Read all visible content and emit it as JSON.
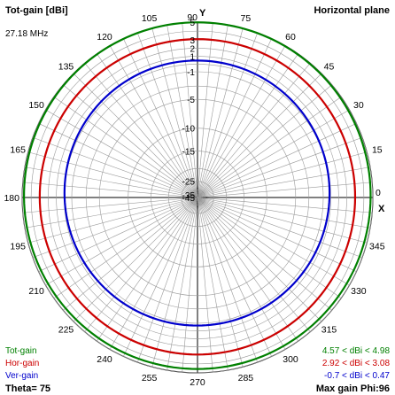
{
  "header": {
    "title": "Tot-gain [dBi]",
    "plane": "Horizontal plane",
    "frequency": "27.18 MHz"
  },
  "axes": {
    "x_label": "X",
    "y_label": "Y"
  },
  "footer": {
    "theta": "Theta= 75",
    "max_gain": "Max gain Phi:96"
  },
  "chart_data": {
    "type": "polar",
    "title": "Tot-gain [dBi]",
    "plane": "Horizontal plane",
    "frequency": "27.18 MHz",
    "angle_ticks": [
      0,
      15,
      30,
      45,
      60,
      75,
      "90",
      105,
      120,
      135,
      150,
      165,
      180,
      195,
      210,
      225,
      240,
      255,
      270,
      285,
      300,
      315,
      330,
      345
    ],
    "radial_ticks": [
      -45,
      -35,
      -25,
      -15,
      -10,
      -5,
      -1,
      1,
      2,
      3,
      5
    ],
    "radial_range": [
      -45,
      5
    ],
    "grid": true,
    "legend_position": "bottom",
    "series": [
      {
        "name": "Tot-gain",
        "range_text": "4.57 < dBi < 4.98",
        "min": 4.57,
        "max": 4.98,
        "color": "#008000"
      },
      {
        "name": "Hor-gain",
        "range_text": "2.92 < dBi < 3.08",
        "min": 2.92,
        "max": 3.08,
        "color": "#cc0000"
      },
      {
        "name": "Ver-gain",
        "range_text": "-0.7 < dBi < 0.47",
        "min": -0.7,
        "max": 0.47,
        "color": "#0000cc"
      }
    ],
    "theta": 75,
    "max_gain_phi": 96
  }
}
